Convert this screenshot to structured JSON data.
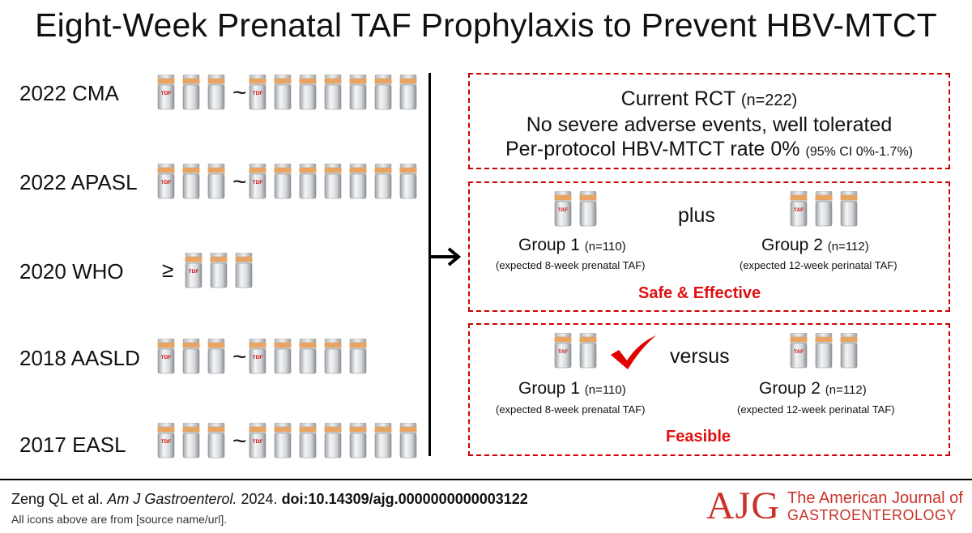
{
  "title": "Eight-Week Prenatal TAF Prophylaxis to Prevent HBV-MTCT",
  "guidelines": [
    {
      "label": "2022 CMA",
      "pre": "tilde",
      "lead_drug": "TDF",
      "lead_count": 3,
      "tail_count": 7
    },
    {
      "label": "2022 APASL",
      "pre": "tilde",
      "lead_drug": "TDF",
      "lead_count": 3,
      "tail_count": 7
    },
    {
      "label": "2020 WHO",
      "pre": "geq",
      "geq_symbol": "≥",
      "lead_drug": "TDF",
      "lead_count": 3,
      "tail_count": 0
    },
    {
      "label": "2018 AASLD",
      "pre": "tilde",
      "lead_drug": "TDF",
      "lead_count": 3,
      "tail_count": 5
    },
    {
      "label": "2017 EASL",
      "pre": "tilde",
      "lead_drug": "TDF",
      "lead_count": 3,
      "tail_count": 7
    }
  ],
  "tilde_symbol": "~",
  "rct_box": {
    "line1": "Current RCT",
    "line1_n": "(n=222)",
    "line2": "No severe adverse events, well tolerated",
    "line3": "Per-protocol HBV-MTCT rate 0%",
    "line3_ci": "(95% CI 0%-1.7%)"
  },
  "safety_box": {
    "connector": "plus",
    "group1_name": "Group 1",
    "group1_n": "(n=110)",
    "group1_desc": "(expected  8-week prenatal TAF)",
    "group1_bottles": 2,
    "group2_name": "Group 2",
    "group2_n": "(n=112)",
    "group2_desc": "(expected 12-week perinatal TAF)",
    "group2_bottles": 3,
    "verdict": "Safe & Effective"
  },
  "feasibility_box": {
    "connector": "versus",
    "group1_name": "Group 1",
    "group1_n": "(n=110)",
    "group1_desc": "(expected  8-week prenatal TAF)",
    "group1_bottles": 2,
    "group2_name": "Group 2",
    "group2_n": "(n=112)",
    "group2_desc": "(expected 12-week perinatal TAF)",
    "group2_bottles": 3,
    "verdict": "Feasible"
  },
  "drug_taf": "TAF",
  "footer": {
    "authors": "Zeng QL et al.",
    "journal_abbrev": "Am J Gastroenterol.",
    "year": "2024.",
    "doi": "doi:10.14309/ajg.0000000000003122",
    "credit": "All icons above are from [source name/url].",
    "logo_text": "AJG",
    "journal_line1": "The American Journal of",
    "journal_line2": "GASTROENTEROLOGY"
  },
  "colors": {
    "accent_red": "#d00000",
    "label_red": "#e01010",
    "logo_red": "#c9332b",
    "cap_orange": "#e8a460"
  }
}
